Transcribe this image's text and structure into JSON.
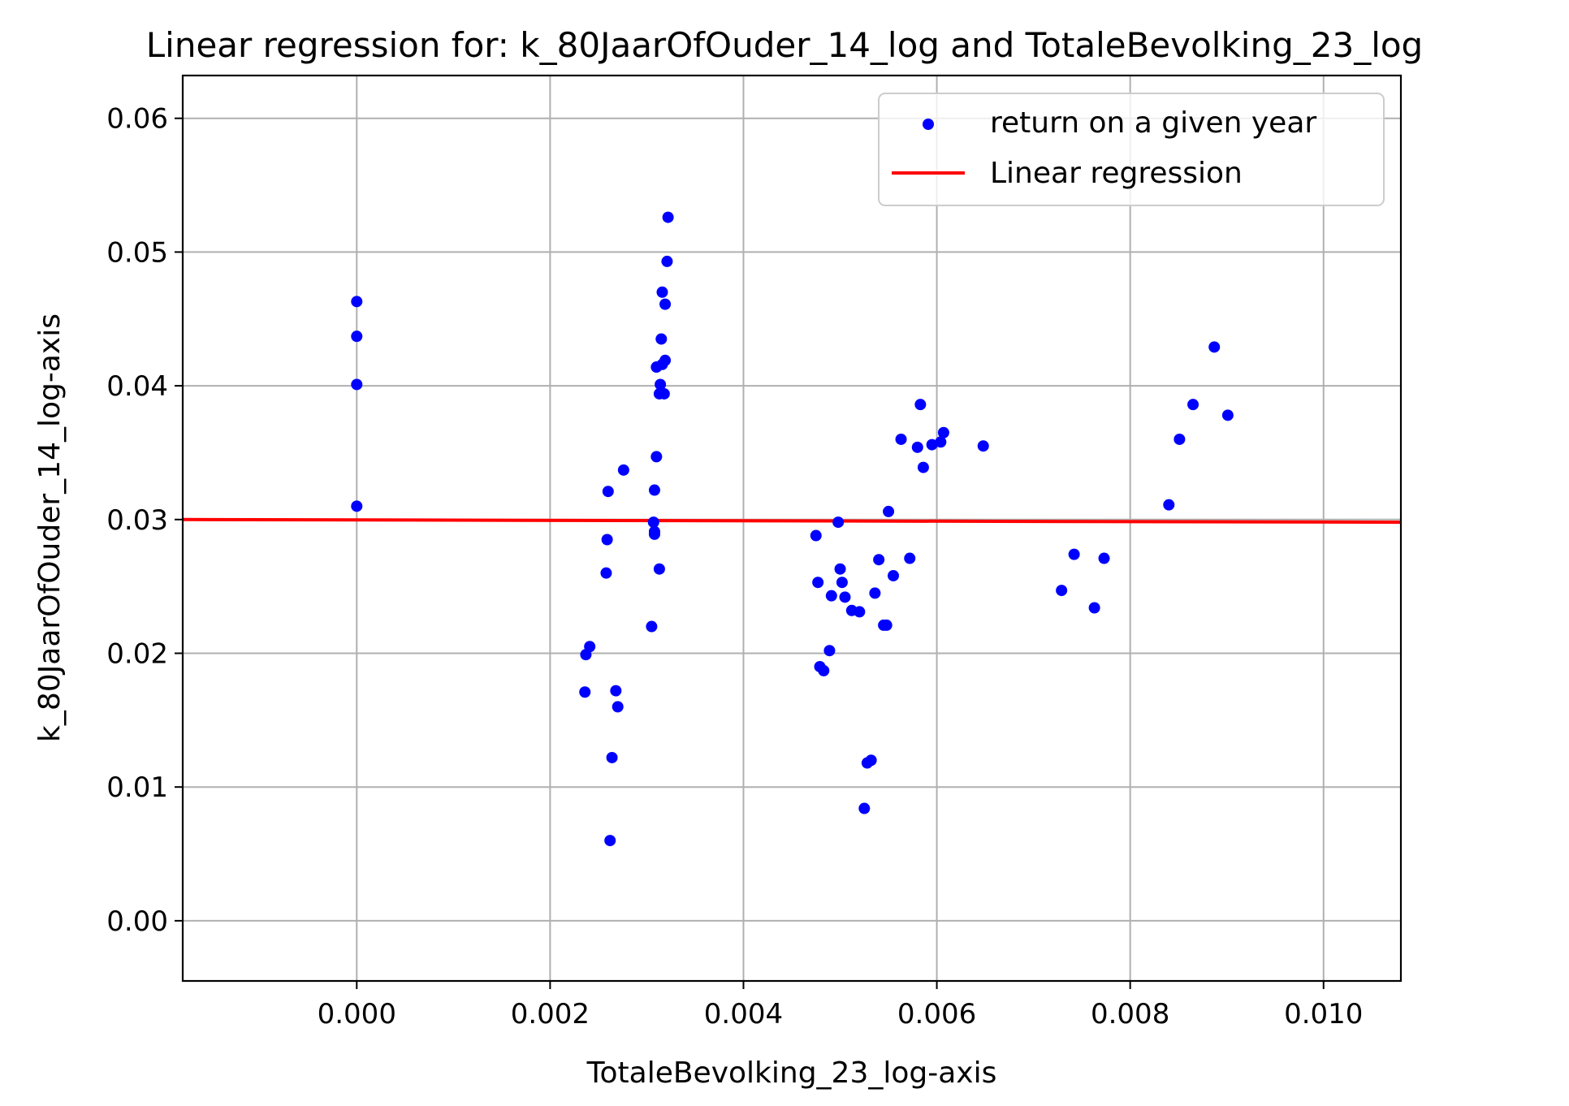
{
  "chart_data": {
    "type": "scatter",
    "title": "Linear regression for: k_80JaarOfOuder_14_log and TotaleBevolking_23_log",
    "xlabel": "TotaleBevolking_23_log-axis",
    "ylabel": "k_80JaarOfOuder_14_log-axis",
    "xlim": [
      -0.0018,
      0.0108
    ],
    "ylim": [
      -0.0045,
      0.0632
    ],
    "xticks": [
      "0.000",
      "0.002",
      "0.004",
      "0.006",
      "0.008",
      "0.010"
    ],
    "yticks": [
      "0.00",
      "0.01",
      "0.02",
      "0.03",
      "0.04",
      "0.05",
      "0.06"
    ],
    "grid": true,
    "legend_position": "top-right",
    "colors": {
      "points": "#0000ff",
      "line": "#ff0000"
    },
    "series": [
      {
        "name": "return on a given year",
        "type": "scatter",
        "points": [
          [
            0.0,
            0.0463
          ],
          [
            0.0,
            0.0437
          ],
          [
            0.0,
            0.0401
          ],
          [
            0.0,
            0.031
          ],
          [
            0.00237,
            0.0199
          ],
          [
            0.00241,
            0.0205
          ],
          [
            0.00236,
            0.0171
          ],
          [
            0.00258,
            0.026
          ],
          [
            0.00259,
            0.0285
          ],
          [
            0.0026,
            0.0321
          ],
          [
            0.00276,
            0.0337
          ],
          [
            0.00264,
            0.0122
          ],
          [
            0.00262,
            0.006
          ],
          [
            0.00268,
            0.0172
          ],
          [
            0.0027,
            0.016
          ],
          [
            0.00305,
            0.022
          ],
          [
            0.00307,
            0.0298
          ],
          [
            0.00308,
            0.0291
          ],
          [
            0.00308,
            0.0289
          ],
          [
            0.00308,
            0.0322
          ],
          [
            0.0031,
            0.0347
          ],
          [
            0.00313,
            0.0263
          ],
          [
            0.0031,
            0.0414
          ],
          [
            0.00313,
            0.0394
          ],
          [
            0.00314,
            0.0401
          ],
          [
            0.00315,
            0.0435
          ],
          [
            0.00316,
            0.0416
          ],
          [
            0.00316,
            0.047
          ],
          [
            0.00318,
            0.0394
          ],
          [
            0.00319,
            0.0419
          ],
          [
            0.00319,
            0.0461
          ],
          [
            0.00321,
            0.0493
          ],
          [
            0.00322,
            0.0526
          ],
          [
            0.00475,
            0.0288
          ],
          [
            0.00477,
            0.0253
          ],
          [
            0.00479,
            0.019
          ],
          [
            0.00483,
            0.0187
          ],
          [
            0.00489,
            0.0202
          ],
          [
            0.00491,
            0.0243
          ],
          [
            0.00498,
            0.0298
          ],
          [
            0.005,
            0.0263
          ],
          [
            0.00502,
            0.0253
          ],
          [
            0.00505,
            0.0242
          ],
          [
            0.00512,
            0.0232
          ],
          [
            0.0052,
            0.0231
          ],
          [
            0.00525,
            0.0084
          ],
          [
            0.00528,
            0.0118
          ],
          [
            0.00532,
            0.012
          ],
          [
            0.00536,
            0.0245
          ],
          [
            0.0054,
            0.027
          ],
          [
            0.00545,
            0.0221
          ],
          [
            0.00548,
            0.0221
          ],
          [
            0.0055,
            0.0306
          ],
          [
            0.00555,
            0.0258
          ],
          [
            0.00563,
            0.036
          ],
          [
            0.00572,
            0.0271
          ],
          [
            0.0058,
            0.0354
          ],
          [
            0.00583,
            0.0386
          ],
          [
            0.00586,
            0.0339
          ],
          [
            0.00595,
            0.0356
          ],
          [
            0.00604,
            0.0358
          ],
          [
            0.00607,
            0.0365
          ],
          [
            0.00648,
            0.0355
          ],
          [
            0.00729,
            0.0247
          ],
          [
            0.00742,
            0.0274
          ],
          [
            0.00763,
            0.0234
          ],
          [
            0.00773,
            0.0271
          ],
          [
            0.0084,
            0.0311
          ],
          [
            0.00851,
            0.036
          ],
          [
            0.00865,
            0.0386
          ],
          [
            0.00887,
            0.0429
          ],
          [
            0.00901,
            0.0378
          ]
        ]
      },
      {
        "name": "Linear regression",
        "type": "line",
        "points": [
          [
            -0.0018,
            0.03
          ],
          [
            0.0108,
            0.0298
          ]
        ]
      }
    ]
  }
}
